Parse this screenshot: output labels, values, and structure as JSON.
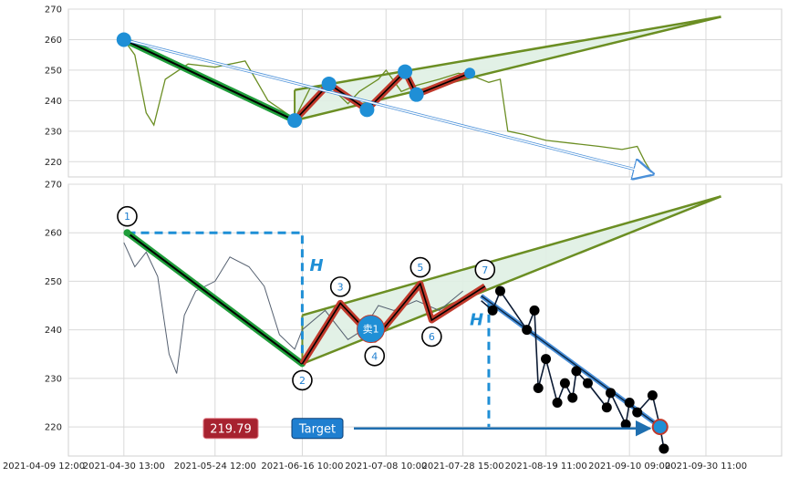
{
  "chart_data": [
    {
      "type": "line",
      "panel": "top",
      "ylim": [
        215,
        270
      ],
      "yticks": [
        220,
        230,
        240,
        250,
        260,
        270
      ],
      "grid": true,
      "price_series": [
        [
          "2021-04-30 13:00",
          260
        ],
        [
          "2021-05-03 10:00",
          255
        ],
        [
          "2021-05-06 10:00",
          236
        ],
        [
          "2021-05-08 10:00",
          232
        ],
        [
          "2021-05-11 10:00",
          247
        ],
        [
          "2021-05-17 10:00",
          252
        ],
        [
          "2021-05-24 12:00",
          251
        ],
        [
          "2021-06-01 10:00",
          253
        ],
        [
          "2021-06-07 10:00",
          240
        ],
        [
          "2021-06-14 10:00",
          234
        ],
        [
          "2021-06-18 10:00",
          244
        ],
        [
          "2021-06-23 10:00",
          245
        ],
        [
          "2021-06-28 10:00",
          239
        ],
        [
          "2021-07-01 10:00",
          243
        ],
        [
          "2021-07-06 10:00",
          247
        ],
        [
          "2021-07-08 10:00",
          250
        ],
        [
          "2021-07-12 10:00",
          243
        ],
        [
          "2021-07-16 10:00",
          245
        ],
        [
          "2021-07-22 10:00",
          247
        ],
        [
          "2021-07-27 10:00",
          249
        ],
        [
          "2021-07-31 10:00",
          248
        ],
        [
          "2021-08-04 10:00",
          246
        ],
        [
          "2021-08-07 10:00",
          247
        ],
        [
          "2021-08-09 10:00",
          230
        ],
        [
          "2021-08-13 10:00",
          229
        ],
        [
          "2021-08-19 11:00",
          227
        ],
        [
          "2021-08-26 10:00",
          226
        ],
        [
          "2021-09-02 10:00",
          225
        ],
        [
          "2021-09-08 10:00",
          224
        ],
        [
          "2021-09-12 10:00",
          225
        ],
        [
          "2021-09-14 10:00",
          220
        ],
        [
          "2021-09-16 10:00",
          216
        ]
      ],
      "pivots": [
        [
          "2021-04-30 13:00",
          260
        ],
        [
          "2021-06-14 10:00",
          233.5
        ],
        [
          "2021-06-23 10:00",
          245.5
        ],
        [
          "2021-07-03 10:00",
          237
        ],
        [
          "2021-07-13 10:00",
          249.5
        ],
        [
          "2021-07-16 10:00",
          242
        ],
        [
          "2021-07-30 10:00",
          249
        ]
      ],
      "channel": {
        "upper": [
          [
            "2021-06-14 10:00",
            243.5
          ],
          [
            "2021-10-04 10:00",
            267.5
          ]
        ],
        "lower": [
          [
            "2021-06-14 10:00",
            233.5
          ],
          [
            "2021-10-04 10:00",
            267.5
          ]
        ]
      },
      "arrow": [
        [
          "2021-04-30 13:00",
          260
        ],
        [
          "2021-09-16 10:00",
          216
        ]
      ]
    },
    {
      "type": "line",
      "panel": "bottom",
      "ylim": [
        214,
        270
      ],
      "yticks": [
        220,
        230,
        240,
        250,
        260,
        270
      ],
      "xticks": [
        "2021-04-09 12:00",
        "2021-04-30 13:00",
        "2021-05-24 12:00",
        "2021-06-16 10:00",
        "2021-07-08 10:00",
        "2021-07-28 15:00",
        "2021-08-19 11:00",
        "2021-09-10 09:00",
        "2021-09-30 11:00"
      ],
      "grid": true,
      "price_series": [
        [
          "2021-04-30 13:00",
          258
        ],
        [
          "2021-05-03 10:00",
          253
        ],
        [
          "2021-05-06 10:00",
          256
        ],
        [
          "2021-05-09 10:00",
          251
        ],
        [
          "2021-05-12 10:00",
          235
        ],
        [
          "2021-05-14 10:00",
          231
        ],
        [
          "2021-05-16 10:00",
          243
        ],
        [
          "2021-05-19 10:00",
          248
        ],
        [
          "2021-05-24 12:00",
          250
        ],
        [
          "2021-05-28 10:00",
          255
        ],
        [
          "2021-06-02 10:00",
          253
        ],
        [
          "2021-06-06 10:00",
          249
        ],
        [
          "2021-06-10 10:00",
          239
        ],
        [
          "2021-06-14 10:00",
          236
        ],
        [
          "2021-06-16 10:00",
          240
        ],
        [
          "2021-06-22 10:00",
          244
        ],
        [
          "2021-06-28 10:00",
          238
        ],
        [
          "2021-07-02 10:00",
          240
        ],
        [
          "2021-07-06 10:00",
          245
        ],
        [
          "2021-07-10 10:00",
          244
        ],
        [
          "2021-07-16 10:00",
          246
        ],
        [
          "2021-07-22 10:00",
          244
        ],
        [
          "2021-07-28 15:00",
          248
        ]
      ],
      "pivots": [
        {
          "label": "1",
          "t": "2021-05-01 10:00",
          "v": 260
        },
        {
          "label": "2",
          "t": "2021-06-16 10:00",
          "v": 233
        },
        {
          "label": "3",
          "t": "2021-06-26 10:00",
          "v": 245.5
        },
        {
          "label": "4",
          "t": "2021-07-05 10:00",
          "v": 238
        },
        {
          "label": "5",
          "t": "2021-07-17 10:00",
          "v": 249.5
        },
        {
          "label": "6",
          "t": "2021-07-20 10:00",
          "v": 242
        },
        {
          "label": "7",
          "t": "2021-08-03 10:00",
          "v": 249
        }
      ],
      "channel": {
        "upper": [
          [
            "2021-06-16 10:00",
            243
          ],
          [
            "2021-10-04 10:00",
            267.5
          ]
        ],
        "lower": [
          [
            "2021-06-16 10:00",
            233
          ],
          [
            "2021-10-04 10:00",
            267.5
          ]
        ]
      },
      "height_marker": {
        "label": "H",
        "from": [
          "2021-05-01 10:00",
          260
        ],
        "corner": [
          "2021-06-16 10:00",
          260
        ],
        "to": [
          "2021-06-16 10:00",
          233
        ]
      },
      "breakout_height_marker": {
        "label": "H",
        "from": [
          "2021-08-04 10:00",
          246
        ],
        "to": [
          "2021-08-04 10:00",
          220
        ]
      },
      "sell_marker": {
        "label": "卖1",
        "t": "2021-07-04 10:00",
        "v": 240.2
      },
      "projection": {
        "upper": [
          [
            "2021-08-02 10:00",
            247
          ],
          [
            "2021-09-18 10:00",
            220
          ]
        ],
        "lower": [
          [
            "2021-08-02 10:00",
            246
          ],
          [
            "2021-09-18 10:00",
            219
          ]
        ],
        "end_point": [
          "2021-09-18 10:00",
          220
        ]
      },
      "projected_path": [
        [
          "2021-08-02 10:00",
          246
        ],
        [
          "2021-08-05 10:00",
          244
        ],
        [
          "2021-08-07 10:00",
          248
        ],
        [
          "2021-08-14 10:00",
          240
        ],
        [
          "2021-08-16 10:00",
          244
        ],
        [
          "2021-08-17 10:00",
          228
        ],
        [
          "2021-08-19 10:00",
          234
        ],
        [
          "2021-08-22 10:00",
          225
        ],
        [
          "2021-08-24 10:00",
          229
        ],
        [
          "2021-08-26 10:00",
          226
        ],
        [
          "2021-08-27 10:00",
          231.5
        ],
        [
          "2021-08-30 10:00",
          229
        ],
        [
          "2021-09-04 10:00",
          224
        ],
        [
          "2021-09-05 10:00",
          227
        ],
        [
          "2021-09-09 10:00",
          220.5
        ],
        [
          "2021-09-10 09:00",
          225
        ],
        [
          "2021-09-12 10:00",
          223
        ],
        [
          "2021-09-16 10:00",
          226.5
        ],
        [
          "2021-09-18 10:00",
          220
        ],
        [
          "2021-09-19 10:00",
          215.5
        ]
      ],
      "target": {
        "label": "Target",
        "value_label": "219.79",
        "value": 219.79
      },
      "colors": {
        "price": "#556070",
        "down_leg": "#1f9d3a",
        "zigzag": "#c0392b",
        "channel": "#6b8e23",
        "channel_fill": "#dff0e3",
        "marker_blue": "#1f8fd6",
        "dashed_blue": "#1f8fd6",
        "target_box": "#1f7fd0",
        "value_box": "#a7222f",
        "projection_line": "#4a90d9"
      }
    }
  ]
}
